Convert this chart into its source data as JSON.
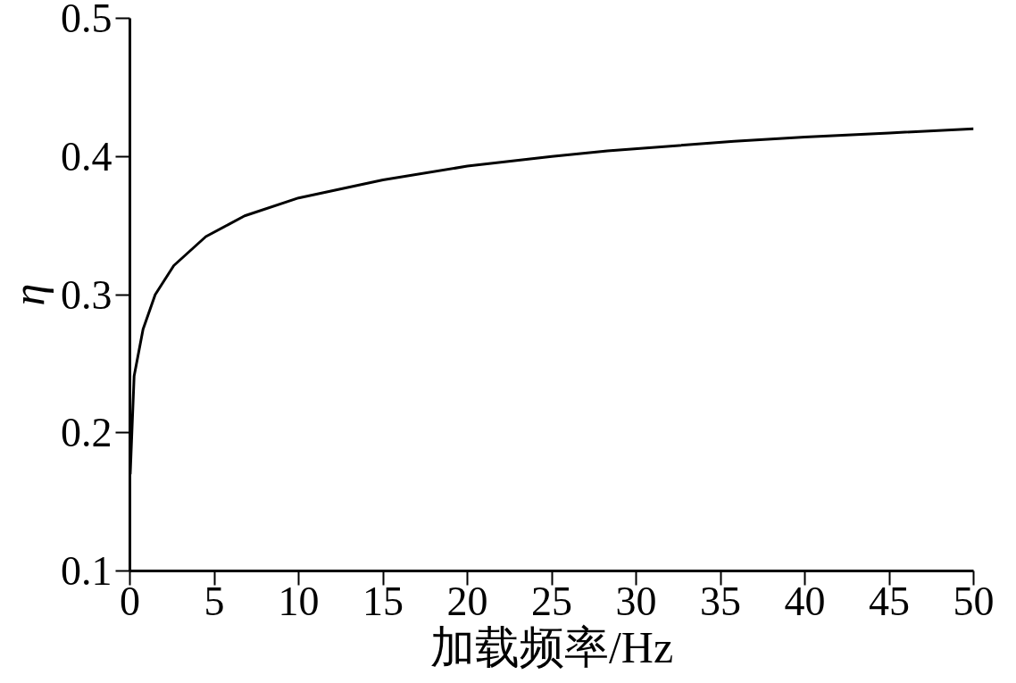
{
  "chart_data": {
    "type": "line",
    "xlabel": "加载频率/Hz",
    "ylabel": "η",
    "xlim": [
      0,
      50
    ],
    "xticks": [
      0,
      5,
      10,
      15,
      20,
      25,
      30,
      35,
      40,
      45,
      50
    ],
    "ylim": [
      0.1,
      0.5
    ],
    "yticks": [
      0.1,
      0.2,
      0.3,
      0.4,
      0.5
    ],
    "series": [
      {
        "color": "#000000",
        "x": [
          0.02,
          0.25,
          0.78,
          1.5,
          2.6,
          4.5,
          6.8,
          10,
          15,
          20,
          25,
          28.3,
          35.8,
          40,
          45,
          50
        ],
        "values": [
          0.17,
          0.241,
          0.275,
          0.3,
          0.321,
          0.342,
          0.357,
          0.37,
          0.383,
          0.393,
          0.4,
          0.404,
          0.411,
          0.414,
          0.417,
          0.42
        ]
      }
    ]
  }
}
